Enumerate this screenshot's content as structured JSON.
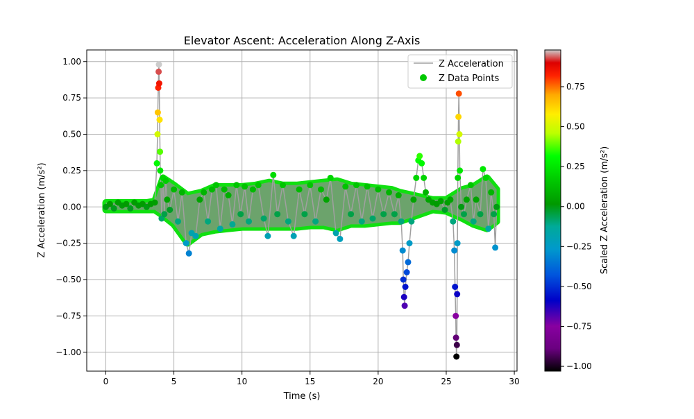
{
  "chart_data": {
    "type": "scatter",
    "title": "Elevator Ascent: Acceleration Along Z-Axis",
    "xlabel": "Time (s)",
    "ylabel": "Z Acceleration (m/s²)",
    "xlim": [
      -1.4,
      30.2
    ],
    "ylim": [
      -1.13,
      1.08
    ],
    "x_ticks": [
      0,
      5,
      10,
      15,
      20,
      25,
      30
    ],
    "y_ticks": [
      -1.0,
      -0.75,
      -0.5,
      -0.25,
      0.0,
      0.25,
      0.5,
      0.75,
      1.0
    ],
    "x_tick_labels": [
      "0",
      "5",
      "10",
      "15",
      "20",
      "25",
      "30"
    ],
    "y_tick_labels": [
      "−1.00",
      "−0.75",
      "−0.50",
      "−0.25",
      "0.00",
      "0.25",
      "0.50",
      "0.75",
      "1.00"
    ],
    "grid": true,
    "legend": {
      "placement": "top-right",
      "entries": [
        "Z Acceleration",
        "Z Data Points"
      ]
    },
    "series": [
      {
        "name": "Z Acceleration",
        "kind": "line",
        "color": "#a0a0a0"
      },
      {
        "name": "Z Data Points",
        "kind": "scatter",
        "colormap": "nipy_spectral",
        "legend_color": "#00c800"
      }
    ],
    "points": [
      [
        0.0,
        0.0
      ],
      [
        0.3,
        0.02
      ],
      [
        0.6,
        -0.01
      ],
      [
        0.9,
        0.03
      ],
      [
        1.2,
        0.01
      ],
      [
        1.5,
        0.02
      ],
      [
        1.8,
        -0.01
      ],
      [
        2.1,
        0.03
      ],
      [
        2.4,
        0.01
      ],
      [
        2.7,
        0.02
      ],
      [
        3.0,
        0.0
      ],
      [
        3.3,
        0.02
      ],
      [
        3.6,
        0.03
      ],
      [
        3.75,
        0.3
      ],
      [
        3.8,
        0.5
      ],
      [
        3.82,
        0.65
      ],
      [
        3.85,
        0.82
      ],
      [
        3.88,
        0.93
      ],
      [
        3.9,
        0.98
      ],
      [
        3.92,
        0.85
      ],
      [
        3.95,
        0.6
      ],
      [
        3.98,
        0.38
      ],
      [
        4.0,
        0.25
      ],
      [
        4.05,
        0.15
      ],
      [
        4.1,
        -0.08
      ],
      [
        4.2,
        0.2
      ],
      [
        4.3,
        -0.05
      ],
      [
        4.4,
        0.18
      ],
      [
        4.5,
        0.05
      ],
      [
        4.7,
        -0.02
      ],
      [
        5.0,
        0.12
      ],
      [
        5.3,
        -0.1
      ],
      [
        5.6,
        0.1
      ],
      [
        5.9,
        -0.25
      ],
      [
        6.1,
        -0.32
      ],
      [
        6.3,
        -0.18
      ],
      [
        6.6,
        -0.2
      ],
      [
        6.9,
        0.05
      ],
      [
        7.2,
        0.1
      ],
      [
        7.5,
        -0.1
      ],
      [
        7.8,
        0.12
      ],
      [
        8.1,
        0.15
      ],
      [
        8.4,
        -0.15
      ],
      [
        8.7,
        0.12
      ],
      [
        9.0,
        0.08
      ],
      [
        9.3,
        -0.12
      ],
      [
        9.6,
        0.15
      ],
      [
        9.9,
        -0.05
      ],
      [
        10.2,
        0.14
      ],
      [
        10.5,
        -0.1
      ],
      [
        10.8,
        0.12
      ],
      [
        11.2,
        0.15
      ],
      [
        11.6,
        -0.08
      ],
      [
        11.9,
        -0.2
      ],
      [
        12.3,
        0.22
      ],
      [
        12.6,
        -0.05
      ],
      [
        13.0,
        0.15
      ],
      [
        13.4,
        -0.1
      ],
      [
        13.8,
        -0.2
      ],
      [
        14.2,
        0.12
      ],
      [
        14.6,
        -0.05
      ],
      [
        15.0,
        0.15
      ],
      [
        15.4,
        -0.1
      ],
      [
        15.8,
        0.12
      ],
      [
        16.2,
        0.05
      ],
      [
        16.5,
        0.2
      ],
      [
        16.9,
        -0.18
      ],
      [
        17.2,
        -0.22
      ],
      [
        17.6,
        0.14
      ],
      [
        18.0,
        -0.05
      ],
      [
        18.4,
        0.15
      ],
      [
        18.8,
        -0.1
      ],
      [
        19.2,
        0.14
      ],
      [
        19.6,
        -0.08
      ],
      [
        20.0,
        0.12
      ],
      [
        20.4,
        -0.05
      ],
      [
        20.8,
        0.1
      ],
      [
        21.2,
        -0.05
      ],
      [
        21.5,
        0.08
      ],
      [
        21.7,
        -0.1
      ],
      [
        21.8,
        -0.3
      ],
      [
        21.85,
        -0.5
      ],
      [
        21.9,
        -0.62
      ],
      [
        21.95,
        -0.68
      ],
      [
        22.0,
        -0.55
      ],
      [
        22.1,
        -0.45
      ],
      [
        22.2,
        -0.38
      ],
      [
        22.3,
        -0.25
      ],
      [
        22.45,
        -0.1
      ],
      [
        22.6,
        0.05
      ],
      [
        22.8,
        0.2
      ],
      [
        22.95,
        0.32
      ],
      [
        23.05,
        0.35
      ],
      [
        23.2,
        0.3
      ],
      [
        23.35,
        0.2
      ],
      [
        23.5,
        0.1
      ],
      [
        23.7,
        0.05
      ],
      [
        24.0,
        0.03
      ],
      [
        24.3,
        0.02
      ],
      [
        24.6,
        0.04
      ],
      [
        24.9,
        -0.02
      ],
      [
        25.1,
        0.03
      ],
      [
        25.3,
        0.05
      ],
      [
        25.5,
        -0.1
      ],
      [
        25.6,
        -0.3
      ],
      [
        25.65,
        -0.55
      ],
      [
        25.7,
        -0.75
      ],
      [
        25.72,
        -0.9
      ],
      [
        25.75,
        -1.03
      ],
      [
        25.78,
        -0.95
      ],
      [
        25.8,
        -0.6
      ],
      [
        25.82,
        -0.25
      ],
      [
        25.85,
        0.2
      ],
      [
        25.88,
        0.45
      ],
      [
        25.9,
        0.62
      ],
      [
        25.93,
        0.78
      ],
      [
        25.97,
        0.5
      ],
      [
        26.0,
        0.25
      ],
      [
        26.1,
        0.0
      ],
      [
        26.3,
        -0.05
      ],
      [
        26.5,
        0.05
      ],
      [
        26.8,
        0.15
      ],
      [
        27.0,
        -0.1
      ],
      [
        27.2,
        0.05
      ],
      [
        27.5,
        -0.05
      ],
      [
        27.7,
        0.26
      ],
      [
        27.9,
        0.2
      ],
      [
        28.1,
        -0.15
      ],
      [
        28.3,
        0.1
      ],
      [
        28.5,
        -0.05
      ],
      [
        28.6,
        -0.28
      ],
      [
        28.7,
        0.0
      ]
    ],
    "dense_envelope": [
      [
        0.0,
        -0.02,
        0.03
      ],
      [
        1.0,
        -0.02,
        0.03
      ],
      [
        2.0,
        -0.02,
        0.03
      ],
      [
        3.0,
        -0.02,
        0.03
      ],
      [
        3.6,
        -0.02,
        0.04
      ],
      [
        4.2,
        -0.06,
        0.2
      ],
      [
        5.0,
        -0.12,
        0.15
      ],
      [
        6.0,
        -0.25,
        0.08
      ],
      [
        7.0,
        -0.18,
        0.1
      ],
      [
        8.0,
        -0.16,
        0.14
      ],
      [
        9.0,
        -0.15,
        0.14
      ],
      [
        10.0,
        -0.14,
        0.14
      ],
      [
        11.0,
        -0.14,
        0.15
      ],
      [
        12.0,
        -0.14,
        0.17
      ],
      [
        13.0,
        -0.14,
        0.15
      ],
      [
        14.0,
        -0.14,
        0.15
      ],
      [
        15.0,
        -0.13,
        0.16
      ],
      [
        16.0,
        -0.13,
        0.17
      ],
      [
        17.0,
        -0.15,
        0.18
      ],
      [
        18.0,
        -0.12,
        0.15
      ],
      [
        19.0,
        -0.12,
        0.14
      ],
      [
        20.0,
        -0.11,
        0.13
      ],
      [
        21.0,
        -0.1,
        0.12
      ],
      [
        21.6,
        -0.1,
        0.1
      ],
      [
        24.0,
        -0.02,
        0.05
      ],
      [
        25.0,
        -0.03,
        0.05
      ],
      [
        26.2,
        -0.08,
        0.12
      ],
      [
        27.0,
        -0.12,
        0.14
      ],
      [
        28.0,
        -0.15,
        0.2
      ],
      [
        28.7,
        -0.1,
        0.12
      ]
    ],
    "colorbar": {
      "label": "Scaled Z Acceleration (m/s²)",
      "range": [
        -1.03,
        0.98
      ],
      "ticks": [
        -1.0,
        -0.75,
        -0.5,
        -0.25,
        0.0,
        0.25,
        0.5,
        0.75
      ],
      "tick_labels": [
        "−1.00",
        "−0.75",
        "−0.50",
        "−0.25",
        "0.00",
        "0.25",
        "0.50",
        "0.75"
      ]
    }
  }
}
